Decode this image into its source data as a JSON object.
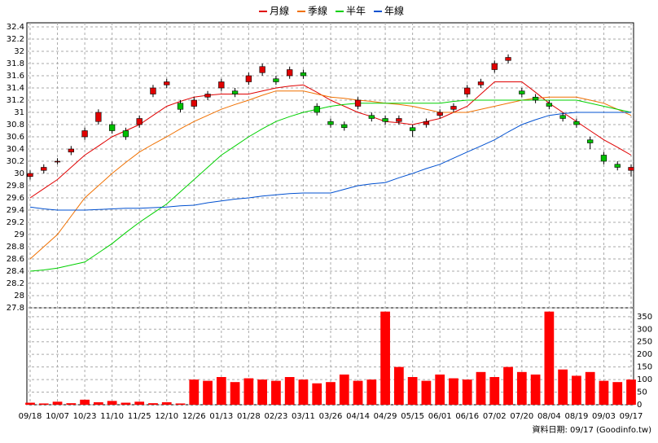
{
  "chart_data": {
    "type": "candlestick",
    "categories": [
      "09/18",
      null,
      "10/07",
      null,
      "10/23",
      null,
      "11/10",
      null,
      "11/25",
      null,
      "12/10",
      null,
      "12/26",
      null,
      "01/13",
      null,
      "01/28",
      null,
      "02/23",
      null,
      "03/11",
      null,
      "03/26",
      null,
      "04/14",
      null,
      "04/29",
      null,
      "05/15",
      null,
      "06/01",
      null,
      "06/16",
      null,
      "07/02",
      null,
      "07/20",
      null,
      "08/04",
      null,
      "08/19",
      null,
      "09/03",
      null,
      "09/17"
    ],
    "candles": {
      "open": [
        29.95,
        30.05,
        30.2,
        30.35,
        30.6,
        30.85,
        30.8,
        30.7,
        30.8,
        31.3,
        31.45,
        31.15,
        31.1,
        31.25,
        31.4,
        31.35,
        31.5,
        31.65,
        31.55,
        31.6,
        31.65,
        31.1,
        30.85,
        30.8,
        31.1,
        30.95,
        30.9,
        30.85,
        30.75,
        30.8,
        30.95,
        31.05,
        31.3,
        31.45,
        31.7,
        31.85,
        31.35,
        31.25,
        31.15,
        30.95,
        30.85,
        30.55,
        30.3,
        30.15,
        30.05
      ],
      "high": [
        30.05,
        30.15,
        30.25,
        30.45,
        30.75,
        31.05,
        30.85,
        30.75,
        30.95,
        31.45,
        31.55,
        31.2,
        31.25,
        31.35,
        31.55,
        31.4,
        31.65,
        31.8,
        31.6,
        31.75,
        31.7,
        31.15,
        30.9,
        30.85,
        31.25,
        31.0,
        30.95,
        30.95,
        30.8,
        30.9,
        31.05,
        31.15,
        31.45,
        31.55,
        31.85,
        31.95,
        31.4,
        31.3,
        31.2,
        31.0,
        30.9,
        30.6,
        30.35,
        30.2,
        30.15
      ],
      "low": [
        29.9,
        30.0,
        30.15,
        30.3,
        30.55,
        30.8,
        30.65,
        30.55,
        30.75,
        31.25,
        31.4,
        31.0,
        31.05,
        31.2,
        31.35,
        31.25,
        31.45,
        31.6,
        31.45,
        31.55,
        31.55,
        30.95,
        30.75,
        30.7,
        31.05,
        30.85,
        30.8,
        30.8,
        30.6,
        30.75,
        30.9,
        31.0,
        31.25,
        31.4,
        31.65,
        31.8,
        31.25,
        31.15,
        31.05,
        30.85,
        30.75,
        30.4,
        30.15,
        30.05,
        29.95
      ],
      "close": [
        30.0,
        30.1,
        30.2,
        30.4,
        30.7,
        31.0,
        30.7,
        30.6,
        30.9,
        31.4,
        31.5,
        31.05,
        31.2,
        31.3,
        31.5,
        31.3,
        31.6,
        31.75,
        31.5,
        31.7,
        31.6,
        31.0,
        30.8,
        30.75,
        31.2,
        30.9,
        30.85,
        30.9,
        30.7,
        30.85,
        31.0,
        31.1,
        31.4,
        31.5,
        31.8,
        31.9,
        31.3,
        31.2,
        31.1,
        30.9,
        30.8,
        30.5,
        30.2,
        30.1,
        30.1
      ],
      "up_color": "#e00000",
      "down_color": "#00c000"
    },
    "series": [
      {
        "name": "月線",
        "color": "#e00000",
        "values": [
          29.6,
          29.75,
          29.9,
          30.1,
          30.3,
          30.45,
          30.6,
          30.7,
          30.8,
          30.95,
          31.1,
          31.18,
          31.25,
          31.28,
          31.3,
          31.3,
          31.3,
          31.35,
          31.4,
          31.43,
          31.45,
          31.33,
          31.2,
          31.1,
          31.0,
          30.93,
          30.85,
          30.83,
          30.8,
          30.85,
          30.9,
          31.0,
          31.1,
          31.3,
          31.5,
          31.5,
          31.5,
          31.33,
          31.15,
          31.0,
          30.85,
          30.7,
          30.55,
          30.43,
          30.3
        ]
      },
      {
        "name": "季線",
        "color": "#f07000",
        "values": [
          28.6,
          28.8,
          29.0,
          29.3,
          29.6,
          29.8,
          30.0,
          30.18,
          30.35,
          30.48,
          30.6,
          30.73,
          30.85,
          30.95,
          31.05,
          31.13,
          31.2,
          31.28,
          31.35,
          31.35,
          31.35,
          31.3,
          31.25,
          31.23,
          31.2,
          31.18,
          31.15,
          31.13,
          31.1,
          31.05,
          31.0,
          31.0,
          31.0,
          31.05,
          31.1,
          31.15,
          31.2,
          31.23,
          31.25,
          31.25,
          31.25,
          31.2,
          31.15,
          31.05,
          30.95
        ]
      },
      {
        "name": "半年",
        "color": "#00d000",
        "values": [
          28.4,
          28.42,
          28.45,
          28.5,
          28.55,
          28.7,
          28.85,
          29.03,
          29.2,
          29.35,
          29.5,
          29.7,
          29.9,
          30.1,
          30.3,
          30.45,
          30.6,
          30.73,
          30.85,
          30.93,
          31.0,
          31.05,
          31.1,
          31.13,
          31.15,
          31.15,
          31.15,
          31.15,
          31.15,
          31.15,
          31.15,
          31.18,
          31.2,
          31.2,
          31.2,
          31.2,
          31.2,
          31.2,
          31.2,
          31.2,
          31.2,
          31.15,
          31.1,
          31.05,
          31.0
        ]
      },
      {
        "name": "年線",
        "color": "#0050d0",
        "values": [
          29.45,
          29.42,
          29.4,
          29.4,
          29.4,
          29.41,
          29.42,
          29.43,
          29.43,
          29.44,
          29.45,
          29.47,
          29.48,
          29.52,
          29.55,
          29.58,
          29.6,
          29.63,
          29.65,
          29.67,
          29.68,
          29.68,
          29.68,
          29.74,
          29.8,
          29.83,
          29.85,
          29.93,
          30.0,
          30.08,
          30.15,
          30.25,
          30.35,
          30.45,
          30.55,
          30.68,
          30.8,
          30.88,
          30.95,
          30.98,
          31.0,
          31.0,
          31.0,
          31.0,
          31.0
        ]
      }
    ],
    "volume": {
      "color": "#ff0000",
      "values": [
        8,
        5,
        12,
        6,
        20,
        10,
        15,
        8,
        12,
        6,
        10,
        5,
        100,
        95,
        110,
        90,
        105,
        100,
        95,
        110,
        100,
        85,
        90,
        120,
        95,
        100,
        370,
        150,
        110,
        95,
        120,
        105,
        100,
        130,
        110,
        150,
        130,
        120,
        370,
        140,
        115,
        130,
        95,
        90,
        100
      ]
    },
    "ylim": [
      27.8,
      32.4
    ],
    "yticks": [
      27.8,
      28,
      28.2,
      28.4,
      28.6,
      28.8,
      29,
      29.2,
      29.4,
      29.6,
      29.8,
      30,
      30.2,
      30.4,
      30.6,
      30.8,
      31,
      31.2,
      31.4,
      31.6,
      31.8,
      32,
      32.2,
      32.4
    ],
    "y2lim": [
      0,
      385
    ],
    "y2ticks": [
      0,
      50,
      100,
      150,
      200,
      250,
      300,
      350
    ],
    "grid": true,
    "source": "資料日期: 09/17 (Goodinfo.tw)"
  }
}
